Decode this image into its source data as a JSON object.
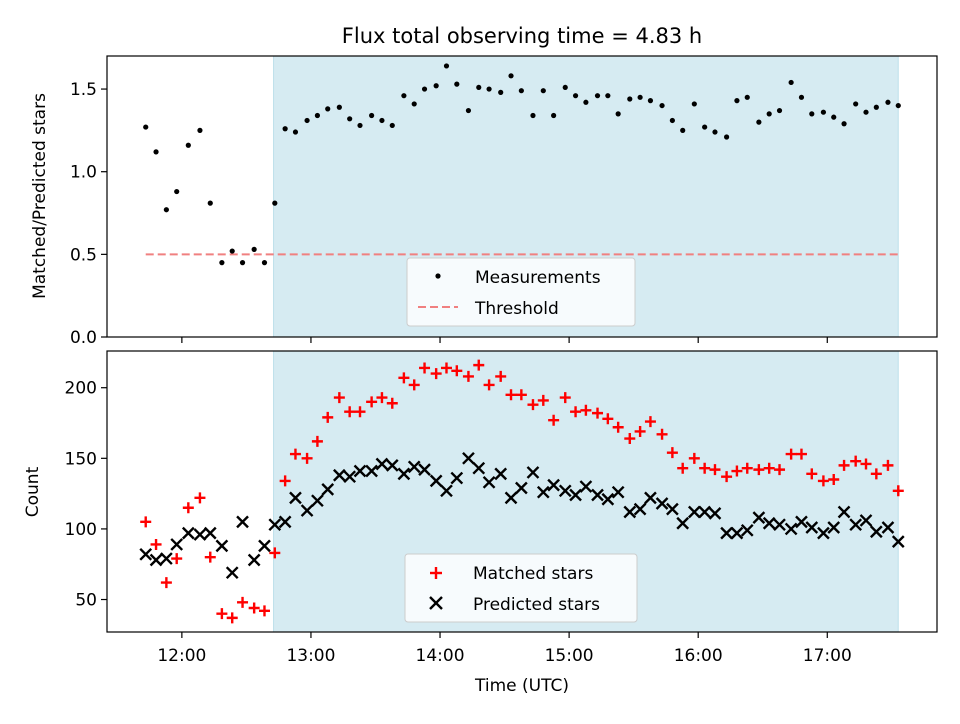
{
  "chart_data": [
    {
      "type": "scatter",
      "title": "Flux total observing time = 4.83 h",
      "xlabel": "",
      "ylabel": "Matched/Predicted stars",
      "ylim": [
        0,
        1.7
      ],
      "yticks": [
        0.0,
        0.5,
        1.0,
        1.5
      ],
      "yticklabels": [
        "0.0",
        "0.5",
        "1.0",
        "1.5"
      ],
      "xlim": [
        11.42,
        17.85
      ],
      "xticks": [
        12,
        13,
        14,
        15,
        16,
        17
      ],
      "grid": false,
      "legend_placement": "lower center",
      "shaded_interval": {
        "x": [
          12.71,
          17.55
        ],
        "color": "#add8e6"
      },
      "threshold": {
        "name": "Threshold",
        "y": 0.5,
        "x": [
          11.72,
          17.55
        ],
        "color": "#f08080"
      },
      "series": [
        {
          "name": "Measurements",
          "color": "#000000",
          "marker": "dot",
          "x": [
            11.72,
            11.8,
            11.88,
            11.96,
            12.05,
            12.14,
            12.22,
            12.31,
            12.39,
            12.47,
            12.56,
            12.64,
            12.72,
            12.8,
            12.88,
            12.97,
            13.05,
            13.13,
            13.22,
            13.3,
            13.38,
            13.47,
            13.55,
            13.63,
            13.72,
            13.8,
            13.88,
            13.97,
            14.05,
            14.13,
            14.22,
            14.3,
            14.38,
            14.47,
            14.55,
            14.63,
            14.72,
            14.8,
            14.88,
            14.97,
            15.05,
            15.13,
            15.22,
            15.3,
            15.38,
            15.47,
            15.55,
            15.63,
            15.72,
            15.8,
            15.88,
            15.97,
            16.05,
            16.13,
            16.22,
            16.3,
            16.38,
            16.47,
            16.55,
            16.63,
            16.72,
            16.8,
            16.88,
            16.97,
            17.05,
            17.13,
            17.22,
            17.3,
            17.38,
            17.47,
            17.55
          ],
          "y": [
            1.27,
            1.12,
            0.77,
            0.88,
            1.16,
            1.25,
            0.81,
            0.45,
            0.52,
            0.45,
            0.53,
            0.45,
            0.81,
            1.26,
            1.24,
            1.31,
            1.34,
            1.38,
            1.39,
            1.32,
            1.28,
            1.34,
            1.31,
            1.28,
            1.46,
            1.41,
            1.5,
            1.52,
            1.64,
            1.53,
            1.37,
            1.51,
            1.5,
            1.48,
            1.58,
            1.49,
            1.34,
            1.49,
            1.34,
            1.51,
            1.46,
            1.42,
            1.46,
            1.46,
            1.35,
            1.44,
            1.45,
            1.43,
            1.4,
            1.31,
            1.25,
            1.41,
            1.27,
            1.24,
            1.21,
            1.43,
            1.45,
            1.3,
            1.35,
            1.37,
            1.54,
            1.45,
            1.35,
            1.36,
            1.33,
            1.29,
            1.41,
            1.36,
            1.39,
            1.42,
            1.4
          ]
        }
      ]
    },
    {
      "type": "scatter",
      "title": "",
      "xlabel": "Time (UTC)",
      "ylabel": "Count",
      "ylim": [
        27,
        226
      ],
      "yticks": [
        50,
        100,
        150,
        200
      ],
      "yticklabels": [
        "50",
        "100",
        "150",
        "200"
      ],
      "xlim": [
        11.42,
        17.85
      ],
      "xticks": [
        12,
        13,
        14,
        15,
        16,
        17
      ],
      "xticklabels": [
        "12:00",
        "13:00",
        "14:00",
        "15:00",
        "16:00",
        "17:00"
      ],
      "grid": false,
      "legend_placement": "lower center",
      "shaded_interval": {
        "x": [
          12.71,
          17.55
        ],
        "color": "#add8e6"
      },
      "series": [
        {
          "name": "Matched stars",
          "color": "#ff0000",
          "marker": "plus",
          "x": [
            11.72,
            11.8,
            11.88,
            11.96,
            12.05,
            12.14,
            12.22,
            12.31,
            12.39,
            12.47,
            12.56,
            12.64,
            12.72,
            12.8,
            12.88,
            12.97,
            13.05,
            13.13,
            13.22,
            13.3,
            13.38,
            13.47,
            13.55,
            13.63,
            13.72,
            13.8,
            13.88,
            13.97,
            14.05,
            14.13,
            14.22,
            14.3,
            14.38,
            14.47,
            14.55,
            14.63,
            14.72,
            14.8,
            14.88,
            14.97,
            15.05,
            15.13,
            15.22,
            15.3,
            15.38,
            15.47,
            15.55,
            15.63,
            15.72,
            15.8,
            15.88,
            15.97,
            16.05,
            16.13,
            16.22,
            16.3,
            16.38,
            16.47,
            16.55,
            16.63,
            16.72,
            16.8,
            16.88,
            16.97,
            17.05,
            17.13,
            17.22,
            17.3,
            17.38,
            17.47,
            17.55
          ],
          "y": [
            105,
            89,
            62,
            79,
            115,
            122,
            80,
            40,
            37,
            48,
            44,
            42,
            83,
            134,
            153,
            150,
            162,
            179,
            193,
            183,
            183,
            190,
            193,
            189,
            207,
            202,
            214,
            210,
            214,
            212,
            208,
            216,
            202,
            208,
            195,
            195,
            188,
            191,
            177,
            193,
            183,
            184,
            182,
            178,
            172,
            164,
            169,
            176,
            167,
            154,
            143,
            150,
            143,
            142,
            137,
            141,
            143,
            142,
            143,
            142,
            153,
            153,
            139,
            134,
            135,
            145,
            148,
            146,
            139,
            145,
            127
          ]
        },
        {
          "name": "Predicted stars",
          "color": "#000000",
          "marker": "x",
          "x": [
            11.72,
            11.8,
            11.88,
            11.96,
            12.05,
            12.14,
            12.22,
            12.31,
            12.39,
            12.47,
            12.56,
            12.64,
            12.72,
            12.8,
            12.88,
            12.97,
            13.05,
            13.13,
            13.22,
            13.3,
            13.38,
            13.47,
            13.55,
            13.63,
            13.72,
            13.8,
            13.88,
            13.97,
            14.05,
            14.13,
            14.22,
            14.3,
            14.38,
            14.47,
            14.55,
            14.63,
            14.72,
            14.8,
            14.88,
            14.97,
            15.05,
            15.13,
            15.22,
            15.3,
            15.38,
            15.47,
            15.55,
            15.63,
            15.72,
            15.8,
            15.88,
            15.97,
            16.05,
            16.13,
            16.22,
            16.3,
            16.38,
            16.47,
            16.55,
            16.63,
            16.72,
            16.8,
            16.88,
            16.97,
            17.05,
            17.13,
            17.22,
            17.3,
            17.38,
            17.47,
            17.55
          ],
          "y": [
            82,
            78,
            79,
            89,
            97,
            96,
            97,
            88,
            69,
            105,
            78,
            88,
            103,
            105,
            122,
            113,
            120,
            128,
            138,
            137,
            141,
            141,
            146,
            145,
            139,
            144,
            142,
            134,
            127,
            136,
            150,
            143,
            133,
            139,
            122,
            129,
            140,
            126,
            131,
            127,
            124,
            130,
            124,
            121,
            126,
            112,
            114,
            122,
            118,
            114,
            104,
            112,
            112,
            111,
            97,
            97,
            99,
            108,
            104,
            103,
            100,
            105,
            101,
            97,
            101,
            112,
            103,
            106,
            98,
            101,
            91
          ]
        }
      ]
    }
  ]
}
